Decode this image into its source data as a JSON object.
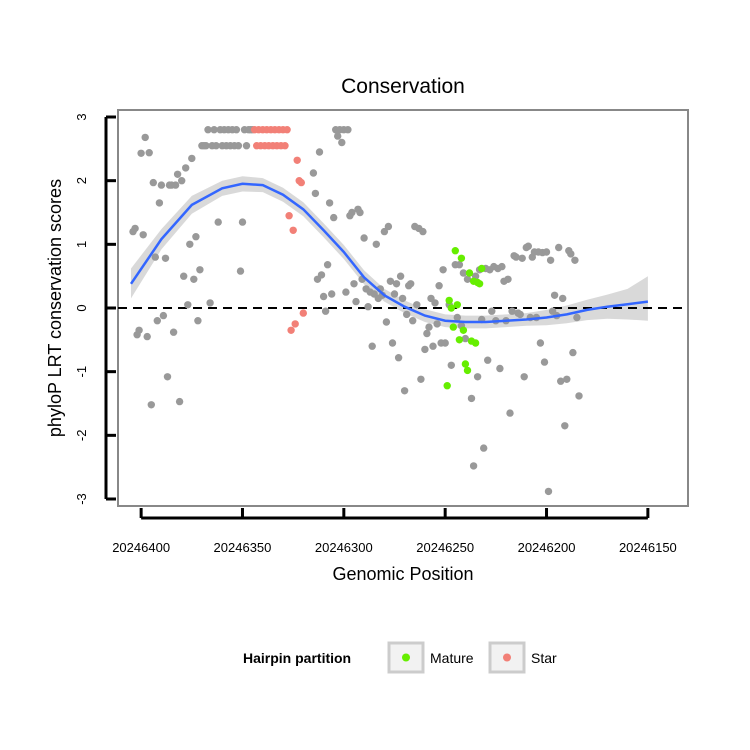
{
  "chart_data": {
    "type": "scatter",
    "title": "Conservation",
    "xlabel": "Genomic Position",
    "ylabel": "phyloP LRT conservation scores",
    "x_reversed": true,
    "xlim": [
      20246405,
      20246145
    ],
    "ylim": [
      -3,
      3
    ],
    "x_ticks": [
      20246400,
      20246350,
      20246300,
      20246250,
      20246200,
      20246150
    ],
    "y_ticks": [
      -3,
      -2,
      -1,
      0,
      1,
      2,
      3
    ],
    "reference_line": {
      "y": 0,
      "style": "dashed"
    },
    "legend": {
      "title": "Hairpin partition",
      "position": "bottom",
      "entries": [
        {
          "label": "Mature",
          "color": "#66ee00"
        },
        {
          "label": "Star",
          "color": "#f28077"
        }
      ]
    },
    "series": [
      {
        "name": "Other",
        "color": "#999999",
        "points": [
          [
            20246404,
            1.2
          ],
          [
            20246403,
            1.25
          ],
          [
            20246402,
            -0.42
          ],
          [
            20246401,
            -0.35
          ],
          [
            20246400,
            2.43
          ],
          [
            20246398,
            2.68
          ],
          [
            20246399,
            1.15
          ],
          [
            20246397,
            -0.45
          ],
          [
            20246396,
            2.44
          ],
          [
            20246395,
            -1.52
          ],
          [
            20246394,
            1.97
          ],
          [
            20246393,
            0.8
          ],
          [
            20246392,
            -0.2
          ],
          [
            20246391,
            1.65
          ],
          [
            20246390,
            1.93
          ],
          [
            20246389,
            -0.12
          ],
          [
            20246388,
            0.78
          ],
          [
            20246387,
            -1.08
          ],
          [
            20246386,
            1.93
          ],
          [
            20246385,
            1.93
          ],
          [
            20246384,
            -0.38
          ],
          [
            20246383,
            1.93
          ],
          [
            20246382,
            2.1
          ],
          [
            20246381,
            -1.47
          ],
          [
            20246380,
            2.0
          ],
          [
            20246379,
            0.5
          ],
          [
            20246378,
            2.2
          ],
          [
            20246377,
            0.05
          ],
          [
            20246376,
            1.0
          ],
          [
            20246375,
            2.35
          ],
          [
            20246374,
            0.45
          ],
          [
            20246373,
            1.12
          ],
          [
            20246372,
            -0.2
          ],
          [
            20246371,
            0.6
          ],
          [
            20246370,
            2.55
          ],
          [
            20246369,
            2.55
          ],
          [
            20246368,
            2.55
          ],
          [
            20246366,
            0.08
          ],
          [
            20246367,
            2.8
          ],
          [
            20246365,
            2.55
          ],
          [
            20246364,
            2.8
          ],
          [
            20246363,
            2.55
          ],
          [
            20246362,
            1.35
          ],
          [
            20246361,
            2.8
          ],
          [
            20246360,
            2.55
          ],
          [
            20246359,
            2.8
          ],
          [
            20246358,
            2.55
          ],
          [
            20246357,
            2.8
          ],
          [
            20246356,
            2.55
          ],
          [
            20246355,
            2.8
          ],
          [
            20246354,
            2.55
          ],
          [
            20246353,
            2.8
          ],
          [
            20246352,
            2.55
          ],
          [
            20246351,
            0.58
          ],
          [
            20246350,
            1.35
          ],
          [
            20246349,
            2.8
          ],
          [
            20246348,
            2.55
          ],
          [
            20246347,
            2.8
          ],
          [
            20246346,
            2.8
          ],
          [
            20246345,
            2.8
          ],
          [
            20246315,
            2.12
          ],
          [
            20246314,
            1.8
          ],
          [
            20246313,
            0.45
          ],
          [
            20246312,
            2.45
          ],
          [
            20246311,
            0.52
          ],
          [
            20246310,
            0.18
          ],
          [
            20246309,
            -0.05
          ],
          [
            20246308,
            0.68
          ],
          [
            20246307,
            1.65
          ],
          [
            20246306,
            0.22
          ],
          [
            20246305,
            1.42
          ],
          [
            20246304,
            2.8
          ],
          [
            20246303,
            2.7
          ],
          [
            20246302,
            2.8
          ],
          [
            20246301,
            2.6
          ],
          [
            20246300,
            2.8
          ],
          [
            20246299,
            0.25
          ],
          [
            20246298,
            2.8
          ],
          [
            20246297,
            1.45
          ],
          [
            20246296,
            1.5
          ],
          [
            20246295,
            0.38
          ],
          [
            20246294,
            0.1
          ],
          [
            20246293,
            1.55
          ],
          [
            20246292,
            1.5
          ],
          [
            20246291,
            0.45
          ],
          [
            20246290,
            1.1
          ],
          [
            20246289,
            0.3
          ],
          [
            20246288,
            0.02
          ],
          [
            20246287,
            0.25
          ],
          [
            20246286,
            -0.6
          ],
          [
            20246285,
            0.22
          ],
          [
            20246284,
            1.0
          ],
          [
            20246283,
            0.15
          ],
          [
            20246282,
            0.3
          ],
          [
            20246281,
            0.2
          ],
          [
            20246280,
            1.2
          ],
          [
            20246279,
            -0.22
          ],
          [
            20246278,
            1.28
          ],
          [
            20246277,
            0.42
          ],
          [
            20246276,
            -0.55
          ],
          [
            20246275,
            0.22
          ],
          [
            20246274,
            0.38
          ],
          [
            20246273,
            -0.78
          ],
          [
            20246272,
            0.5
          ],
          [
            20246271,
            0.15
          ],
          [
            20246270,
            -1.3
          ],
          [
            20246269,
            -0.1
          ],
          [
            20246268,
            0.35
          ],
          [
            20246267,
            0.38
          ],
          [
            20246266,
            -0.2
          ],
          [
            20246265,
            1.28
          ],
          [
            20246264,
            0.05
          ],
          [
            20246263,
            1.25
          ],
          [
            20246262,
            -1.12
          ],
          [
            20246261,
            1.2
          ],
          [
            20246260,
            -0.65
          ],
          [
            20246259,
            -0.4
          ],
          [
            20246258,
            -0.3
          ],
          [
            20246257,
            0.15
          ],
          [
            20246256,
            -0.6
          ],
          [
            20246255,
            0.08
          ],
          [
            20246254,
            -0.25
          ],
          [
            20246253,
            0.35
          ],
          [
            20246252,
            -0.55
          ],
          [
            20246251,
            0.6
          ],
          [
            20246250,
            -0.55
          ],
          [
            20246248,
            0.05
          ],
          [
            20246247,
            -0.9
          ],
          [
            20246245,
            0.68
          ],
          [
            20246244,
            -0.15
          ],
          [
            20246243,
            0.68
          ],
          [
            20246242,
            -0.28
          ],
          [
            20246241,
            0.55
          ],
          [
            20246240,
            -0.48
          ],
          [
            20246239,
            0.45
          ],
          [
            20246237,
            -1.42
          ],
          [
            20246236,
            -2.48
          ],
          [
            20246235,
            0.5
          ],
          [
            20246234,
            -1.08
          ],
          [
            20246233,
            0.6
          ],
          [
            20246232,
            -0.18
          ],
          [
            20246231,
            -2.2
          ],
          [
            20246230,
            0.62
          ],
          [
            20246229,
            -0.82
          ],
          [
            20246228,
            0.6
          ],
          [
            20246227,
            -0.05
          ],
          [
            20246226,
            0.65
          ],
          [
            20246225,
            -0.2
          ],
          [
            20246224,
            0.62
          ],
          [
            20246223,
            -0.95
          ],
          [
            20246222,
            0.65
          ],
          [
            20246221,
            0.42
          ],
          [
            20246220,
            -0.2
          ],
          [
            20246219,
            0.45
          ],
          [
            20246218,
            -1.65
          ],
          [
            20246217,
            -0.05
          ],
          [
            20246216,
            0.82
          ],
          [
            20246215,
            0.8
          ],
          [
            20246214,
            -0.08
          ],
          [
            20246213,
            -0.1
          ],
          [
            20246212,
            0.78
          ],
          [
            20246211,
            -1.08
          ],
          [
            20246210,
            0.95
          ],
          [
            20246209,
            0.97
          ],
          [
            20246208,
            -0.15
          ],
          [
            20246207,
            0.8
          ],
          [
            20246206,
            0.88
          ],
          [
            20246205,
            -0.15
          ],
          [
            20246204,
            0.88
          ],
          [
            20246203,
            -0.55
          ],
          [
            20246202,
            0.87
          ],
          [
            20246201,
            -0.85
          ],
          [
            20246200,
            0.88
          ],
          [
            20246199,
            -2.88
          ],
          [
            20246198,
            0.75
          ],
          [
            20246197,
            -0.05
          ],
          [
            20246196,
            0.2
          ],
          [
            20246195,
            -0.12
          ],
          [
            20246194,
            0.95
          ],
          [
            20246193,
            -1.15
          ],
          [
            20246192,
            0.15
          ],
          [
            20246191,
            -1.85
          ],
          [
            20246190,
            -1.12
          ],
          [
            20246189,
            0.9
          ],
          [
            20246188,
            0.85
          ],
          [
            20246187,
            -0.7
          ],
          [
            20246186,
            0.75
          ],
          [
            20246185,
            -0.15
          ],
          [
            20246184,
            -1.38
          ]
        ]
      },
      {
        "name": "Star",
        "color": "#f28077",
        "points": [
          [
            20246344,
            2.8
          ],
          [
            20246343,
            2.55
          ],
          [
            20246342,
            2.8
          ],
          [
            20246341,
            2.55
          ],
          [
            20246340,
            2.8
          ],
          [
            20246339,
            2.55
          ],
          [
            20246338,
            2.8
          ],
          [
            20246337,
            2.55
          ],
          [
            20246336,
            2.8
          ],
          [
            20246335,
            2.55
          ],
          [
            20246334,
            2.8
          ],
          [
            20246333,
            2.55
          ],
          [
            20246332,
            2.8
          ],
          [
            20246331,
            2.55
          ],
          [
            20246330,
            2.8
          ],
          [
            20246329,
            2.55
          ],
          [
            20246328,
            2.8
          ],
          [
            20246327,
            1.45
          ],
          [
            20246326,
            -0.35
          ],
          [
            20246325,
            1.22
          ],
          [
            20246324,
            -0.25
          ],
          [
            20246323,
            2.32
          ],
          [
            20246322,
            2.0
          ],
          [
            20246321,
            1.97
          ],
          [
            20246320,
            -0.08
          ]
        ]
      },
      {
        "name": "Mature",
        "color": "#66ee00",
        "points": [
          [
            20246249,
            -1.22
          ],
          [
            20246248,
            0.12
          ],
          [
            20246247,
            0.0
          ],
          [
            20246246,
            -0.3
          ],
          [
            20246245,
            0.9
          ],
          [
            20246244,
            0.05
          ],
          [
            20246243,
            -0.5
          ],
          [
            20246242,
            0.78
          ],
          [
            20246241,
            -0.35
          ],
          [
            20246240,
            -0.88
          ],
          [
            20246239,
            -0.98
          ],
          [
            20246238,
            0.55
          ],
          [
            20246237,
            -0.52
          ],
          [
            20246236,
            0.42
          ],
          [
            20246235,
            -0.55
          ],
          [
            20246234,
            0.4
          ],
          [
            20246233,
            0.38
          ],
          [
            20246232,
            0.62
          ]
        ]
      }
    ],
    "smooth": {
      "color": "#3366ff",
      "band_color": "#cccccc",
      "points": [
        [
          20246405,
          0.38,
          0.15,
          0.62
        ],
        [
          20246390,
          1.08,
          0.92,
          1.24
        ],
        [
          20246375,
          1.62,
          1.48,
          1.76
        ],
        [
          20246360,
          1.88,
          1.76,
          2.0
        ],
        [
          20246350,
          1.95,
          1.83,
          2.07
        ],
        [
          20246340,
          1.93,
          1.82,
          2.04
        ],
        [
          20246330,
          1.78,
          1.67,
          1.89
        ],
        [
          20246320,
          1.55,
          1.44,
          1.66
        ],
        [
          20246310,
          1.22,
          1.11,
          1.33
        ],
        [
          20246300,
          0.88,
          0.77,
          0.99
        ],
        [
          20246290,
          0.48,
          0.37,
          0.59
        ],
        [
          20246280,
          0.2,
          0.1,
          0.3
        ],
        [
          20246270,
          0.02,
          -0.08,
          0.12
        ],
        [
          20246260,
          -0.12,
          -0.22,
          -0.02
        ],
        [
          20246250,
          -0.2,
          -0.3,
          -0.1
        ],
        [
          20246240,
          -0.22,
          -0.32,
          -0.12
        ],
        [
          20246230,
          -0.22,
          -0.32,
          -0.12
        ],
        [
          20246220,
          -0.2,
          -0.3,
          -0.1
        ],
        [
          20246210,
          -0.18,
          -0.28,
          -0.08
        ],
        [
          20246200,
          -0.15,
          -0.27,
          -0.03
        ],
        [
          20246190,
          -0.1,
          -0.24,
          0.04
        ],
        [
          20246180,
          -0.03,
          -0.19,
          0.13
        ],
        [
          20246170,
          0.02,
          -0.17,
          0.21
        ],
        [
          20246160,
          0.06,
          -0.18,
          0.3
        ],
        [
          20246150,
          0.1,
          -0.2,
          0.5
        ]
      ]
    }
  }
}
